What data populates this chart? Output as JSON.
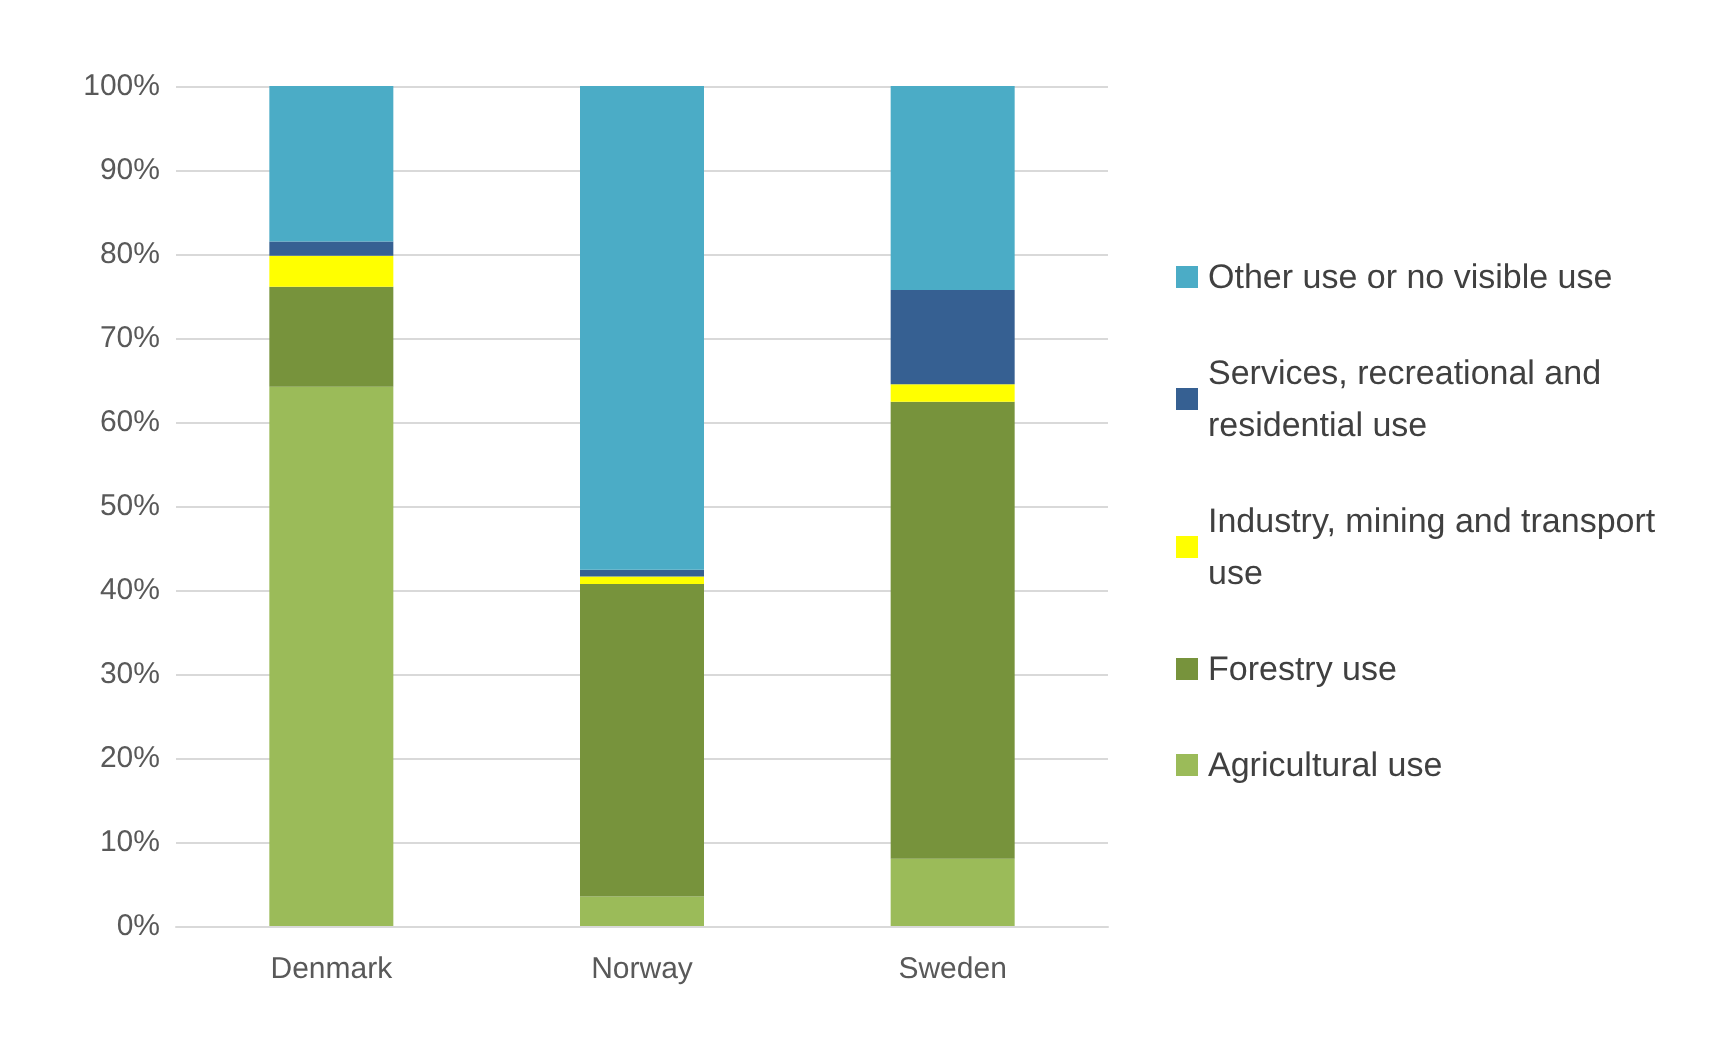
{
  "chart_data": {
    "type": "bar",
    "stacked": true,
    "categories": [
      "Denmark",
      "Norway",
      "Sweden"
    ],
    "series": [
      {
        "name": "Agricultural use",
        "color": "#9bbb59",
        "values": [
          64.2,
          3.5,
          8.0
        ]
      },
      {
        "name": "Forestry use",
        "color": "#77933c",
        "values": [
          11.9,
          37.2,
          54.4
        ]
      },
      {
        "name": "Industry, mining and transport use",
        "color": "#ffff00",
        "values": [
          3.7,
          0.9,
          2.1
        ]
      },
      {
        "name": "Services, recreational and residential use",
        "color": "#366092",
        "values": [
          1.7,
          0.8,
          11.2
        ]
      },
      {
        "name": "Other use or no visible use",
        "color": "#4bacc6",
        "values": [
          18.5,
          57.6,
          24.3
        ]
      }
    ],
    "ylim": [
      0,
      100
    ],
    "yticks": [
      {
        "value": 0,
        "label": "0%"
      },
      {
        "value": 10,
        "label": "10%"
      },
      {
        "value": 20,
        "label": "20%"
      },
      {
        "value": 30,
        "label": "30%"
      },
      {
        "value": 40,
        "label": "40%"
      },
      {
        "value": 50,
        "label": "50%"
      },
      {
        "value": 60,
        "label": "60%"
      },
      {
        "value": 70,
        "label": "70%"
      },
      {
        "value": 80,
        "label": "80%"
      },
      {
        "value": 90,
        "label": "90%"
      },
      {
        "value": 100,
        "label": "100%"
      }
    ],
    "grid": true,
    "legend": "right"
  }
}
